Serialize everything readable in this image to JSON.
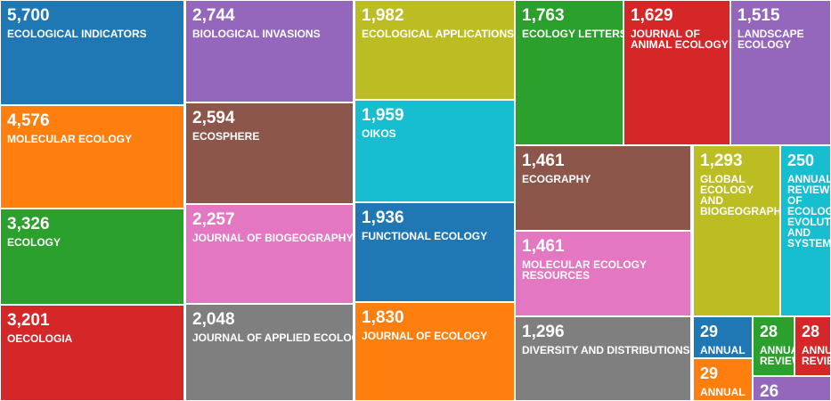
{
  "chart_data": {
    "type": "treemap",
    "items": [
      {
        "label": "ECOLOGICAL INDICATORS",
        "value": 5700,
        "display": "5,700",
        "color": "#1f77b4"
      },
      {
        "label": "MOLECULAR ECOLOGY",
        "value": 4576,
        "display": "4,576",
        "color": "#ff7f0e"
      },
      {
        "label": "ECOLOGY",
        "value": 3326,
        "display": "3,326",
        "color": "#2ca02c"
      },
      {
        "label": "OECOLOGIA",
        "value": 3201,
        "display": "3,201",
        "color": "#d62728"
      },
      {
        "label": "BIOLOGICAL INVASIONS",
        "value": 2744,
        "display": "2,744",
        "color": "#9467bd"
      },
      {
        "label": "ECOSPHERE",
        "value": 2594,
        "display": "2,594",
        "color": "#8c564b"
      },
      {
        "label": "JOURNAL OF BIOGEOGRAPHY",
        "value": 2257,
        "display": "2,257",
        "color": "#e377c2"
      },
      {
        "label": "JOURNAL OF APPLIED ECOLOGY",
        "value": 2048,
        "display": "2,048",
        "color": "#7f7f7f"
      },
      {
        "label": "ECOLOGICAL APPLICATIONS",
        "value": 1982,
        "display": "1,982",
        "color": "#bcbd22"
      },
      {
        "label": "OIKOS",
        "value": 1959,
        "display": "1,959",
        "color": "#17becf"
      },
      {
        "label": "FUNCTIONAL ECOLOGY",
        "value": 1936,
        "display": "1,936",
        "color": "#1f77b4"
      },
      {
        "label": "JOURNAL OF ECOLOGY",
        "value": 1830,
        "display": "1,830",
        "color": "#ff7f0e"
      },
      {
        "label": "ECOLOGY LETTERS",
        "value": 1763,
        "display": "1,763",
        "color": "#2ca02c"
      },
      {
        "label": "JOURNAL OF ANIMAL ECOLOGY",
        "value": 1629,
        "display": "1,629",
        "color": "#d62728"
      },
      {
        "label": "LANDSCAPE ECOLOGY",
        "value": 1515,
        "display": "1,515",
        "color": "#9467bd"
      },
      {
        "label": "ECOGRAPHY",
        "value": 1461,
        "display": "1,461",
        "color": "#8c564b"
      },
      {
        "label": "MOLECULAR ECOLOGY RESOURCES",
        "value": 1461,
        "display": "1,461",
        "color": "#e377c2"
      },
      {
        "label": "DIVERSITY AND DISTRIBUTIONS",
        "value": 1296,
        "display": "1,296",
        "color": "#7f7f7f"
      },
      {
        "label": "GLOBAL ECOLOGY AND BIOGEOGRAPHY",
        "value": 1293,
        "display": "1,293",
        "color": "#bcbd22"
      },
      {
        "label": "ANNUAL REVIEW OF ECOLOGY EVOLUTION AND SYSTEMATICS",
        "value": 250,
        "display": "250",
        "color": "#17becf"
      },
      {
        "label": "ANNUAL",
        "value": 29,
        "display": "29",
        "color": "#1f77b4"
      },
      {
        "label": "ANNUAL",
        "value": 29,
        "display": "29",
        "color": "#ff7f0e"
      },
      {
        "label": "ANNUAL REVIEW",
        "value": 28,
        "display": "28",
        "color": "#2ca02c"
      },
      {
        "label": "ANNUAL REVIEW",
        "value": 28,
        "display": "28",
        "color": "#d62728"
      },
      {
        "label": "",
        "value": 26,
        "display": "26",
        "color": "#9467bd"
      }
    ]
  }
}
